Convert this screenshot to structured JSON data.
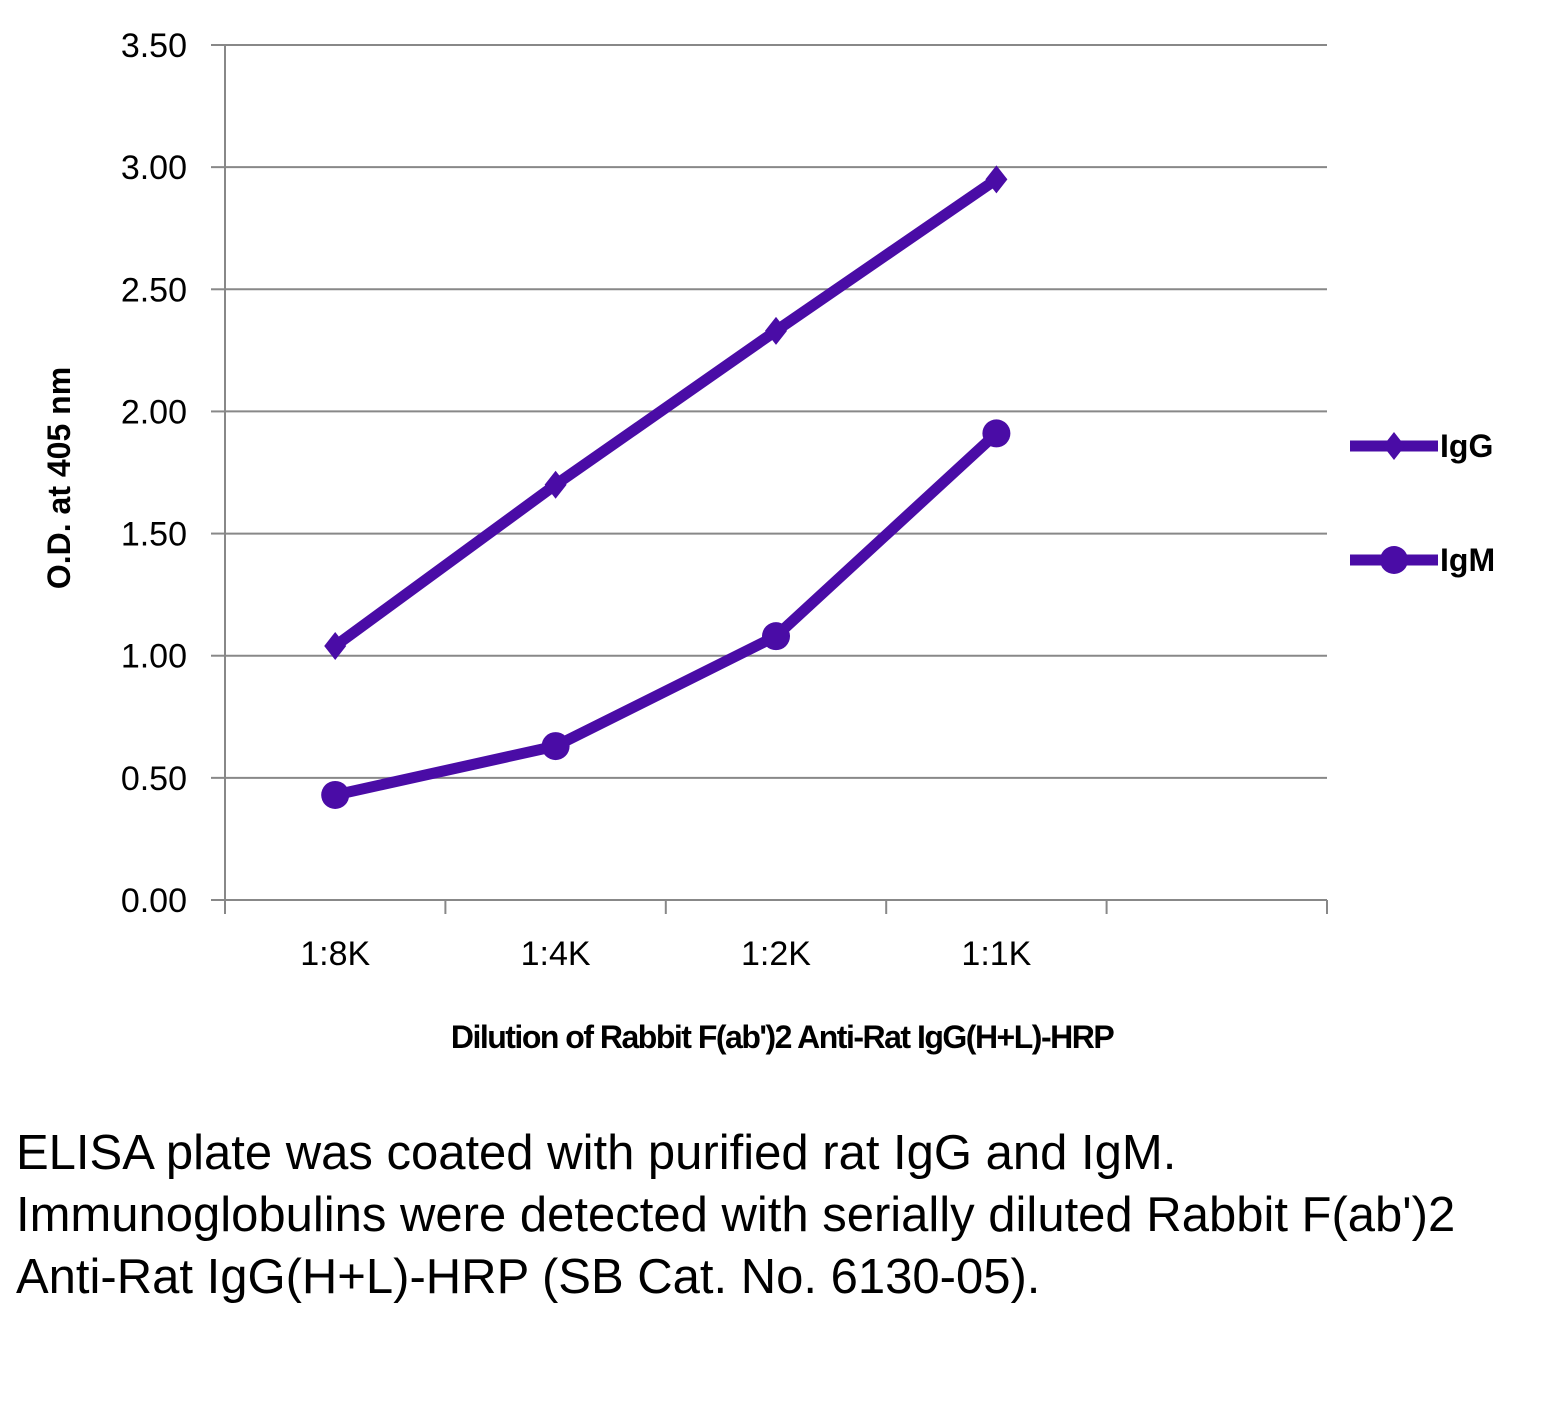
{
  "chart_data": {
    "type": "line",
    "title": "",
    "xlabel": "Dilution of Rabbit F(ab')2 Anti-Rat IgG(H+L)-HRP",
    "ylabel": "O.D. at 405 nm",
    "categories": [
      "1:8K",
      "1:4K",
      "1:2K",
      "1:1K"
    ],
    "ylim": [
      0,
      3.5
    ],
    "yticks": [
      "0.00",
      "0.50",
      "1.00",
      "1.50",
      "2.00",
      "2.50",
      "3.00",
      "3.50"
    ],
    "grid": true,
    "legend_position": "right",
    "series": [
      {
        "name": "IgG",
        "marker": "diamond",
        "color": "#4a0ca6",
        "values": [
          1.04,
          1.7,
          2.33,
          2.95
        ]
      },
      {
        "name": "IgM",
        "marker": "circle",
        "color": "#4a0ca6",
        "values": [
          0.43,
          0.63,
          1.08,
          1.91
        ]
      }
    ]
  },
  "caption": "ELISA plate was coated with purified rat IgG and IgM.  Immunoglobulins were detected with serially diluted Rabbit F(ab')2 Anti-Rat IgG(H+L)-HRP (SB Cat. No. 6130-05)."
}
